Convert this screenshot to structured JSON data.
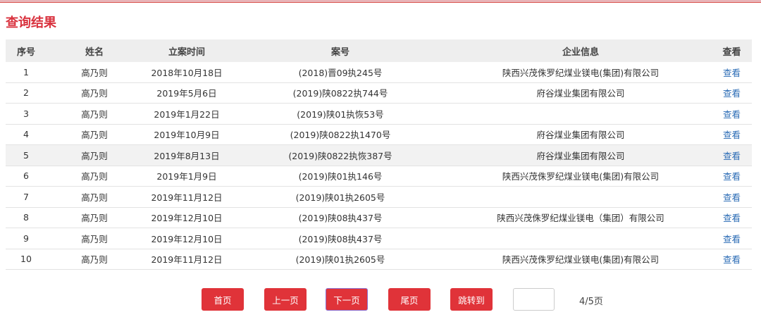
{
  "title": "查询结果",
  "columns": [
    "序号",
    "姓名",
    "立案时间",
    "案号",
    "企业信息",
    "查看"
  ],
  "rows": [
    [
      "1",
      "高乃则",
      "2018年10月18日",
      "(2018)晋09执245号",
      "陕西兴茂侏罗纪煤业镁电(集团)有限公司",
      "查看"
    ],
    [
      "2",
      "高乃则",
      "2019年5月6日",
      "(2019)陕0822执744号",
      "府谷煤业集团有限公司",
      "查看"
    ],
    [
      "3",
      "高乃则",
      "2019年1月22日",
      "(2019)陕01执恢53号",
      "",
      "查看"
    ],
    [
      "4",
      "高乃则",
      "2019年10月9日",
      "(2019)陕0822执1470号",
      "府谷煤业集团有限公司",
      "查看"
    ],
    [
      "5",
      "高乃则",
      "2019年8月13日",
      "(2019)陕0822执恢387号",
      "府谷煤业集团有限公司",
      "查看"
    ],
    [
      "6",
      "高乃则",
      "2019年1月9日",
      "(2019)陕01执146号",
      "陕西兴茂侏罗纪煤业镁电(集团)有限公司",
      "查看"
    ],
    [
      "7",
      "高乃则",
      "2019年11月12日",
      "(2019)陕01执2605号",
      "",
      "查看"
    ],
    [
      "8",
      "高乃则",
      "2019年12月10日",
      "(2019)陕08执437号",
      "陕西兴茂侏罗纪煤业镁电（集团）有限公司",
      "查看"
    ],
    [
      "9",
      "高乃则",
      "2019年12月10日",
      "(2019)陕08执437号",
      "",
      "查看"
    ],
    [
      "10",
      "高乃则",
      "2019年11月12日",
      "(2019)陕01执2605号",
      "陕西兴茂侏罗纪煤业镁电(集团)有限公司",
      "查看"
    ]
  ],
  "pagination": {
    "first": "首页",
    "prev": "上一页",
    "next": "下一页",
    "last": "尾页",
    "jump": "跳转到",
    "jump_value": "",
    "page_info": "4/5页"
  },
  "colors": {
    "accent": "#e03339",
    "link": "#2a6bb5"
  }
}
